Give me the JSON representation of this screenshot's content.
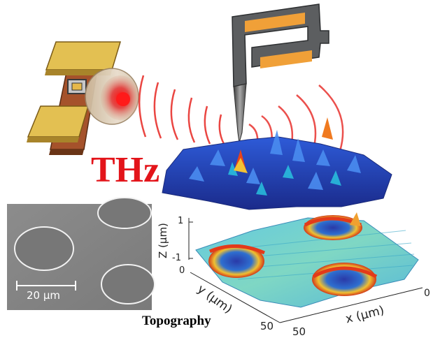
{
  "labels": {
    "thz": "THz",
    "topography": "Topography",
    "sem_scalebar": "20 μm"
  },
  "axes": {
    "z_label": "Z (μm)",
    "z_ticks": [
      "1",
      "-1"
    ],
    "y_label": "y (μm)",
    "y_ticks": [
      "0",
      "50"
    ],
    "x_label": "x (μm)",
    "x_ticks": [
      "50",
      "0"
    ]
  },
  "colors": {
    "thz_text": "#e3141a",
    "wave": "#e8322e",
    "antenna_gold": "#e3c052",
    "antenna_copper": "#a5522b",
    "cantilever_gray": "#5c5e60",
    "cantilever_orange": "#f0a038",
    "sem_gray": "#8a8a8a"
  }
}
